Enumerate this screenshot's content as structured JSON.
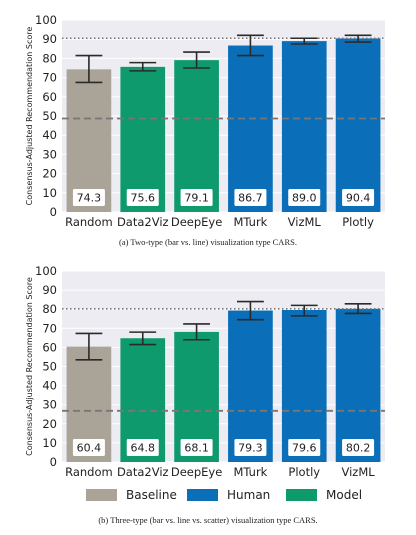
{
  "chart_data": [
    {
      "type": "bar",
      "ylabel": "Consensus-Adjusted Recommendation Score",
      "ylim": [
        0,
        100
      ],
      "yticks": [
        0,
        10,
        20,
        30,
        40,
        50,
        60,
        70,
        80,
        90,
        100
      ],
      "grid": true,
      "categories": [
        "Random",
        "Data2Viz",
        "DeepEye",
        "MTurk",
        "VizML",
        "Plotly"
      ],
      "values": [
        74.3,
        75.6,
        79.1,
        86.7,
        89.0,
        90.4
      ],
      "value_labels": [
        "74.3",
        "75.6",
        "79.1",
        "86.7",
        "89.0",
        "90.4"
      ],
      "error_low": [
        67.5,
        73.5,
        75.0,
        81.5,
        87.5,
        88.5
      ],
      "error_high": [
        81.5,
        77.8,
        83.3,
        92.0,
        90.5,
        92.0
      ],
      "groups": [
        "Baseline",
        "Model",
        "Model",
        "Human",
        "Human",
        "Human"
      ],
      "reference_lines": [
        {
          "style": "dotted",
          "value": 90.5
        },
        {
          "style": "dashed",
          "value": 48.7
        }
      ],
      "caption": "(a) Two-type (bar vs. line) visualization type CARS."
    },
    {
      "type": "bar",
      "ylabel": "Consensus-Adjusted Recommendation Score",
      "ylim": [
        0,
        100
      ],
      "yticks": [
        0,
        10,
        20,
        30,
        40,
        50,
        60,
        70,
        80,
        90,
        100
      ],
      "grid": true,
      "categories": [
        "Random",
        "Data2Viz",
        "DeepEye",
        "MTurk",
        "Plotly",
        "VizML"
      ],
      "values": [
        60.4,
        64.8,
        68.1,
        79.3,
        79.6,
        80.2
      ],
      "value_labels": [
        "60.4",
        "64.8",
        "68.1",
        "79.3",
        "79.6",
        "80.2"
      ],
      "error_low": [
        53.5,
        61.5,
        64.0,
        74.5,
        76.5,
        77.8
      ],
      "error_high": [
        67.3,
        68.0,
        72.3,
        84.0,
        82.0,
        82.8
      ],
      "groups": [
        "Baseline",
        "Model",
        "Model",
        "Human",
        "Human",
        "Human"
      ],
      "reference_lines": [
        {
          "style": "dotted",
          "value": 80.2
        },
        {
          "style": "dashed",
          "value": 26.8
        }
      ],
      "caption": "(b) Three-type (bar vs. line vs. scatter) visualization type CARS."
    }
  ],
  "legend": {
    "placement": "bottom",
    "items": [
      {
        "label": "Baseline",
        "color": "#aaa397"
      },
      {
        "label": "Human",
        "color": "#0a6eb8"
      },
      {
        "label": "Model",
        "color": "#0f9a6e"
      }
    ]
  },
  "colors": {
    "Baseline": "#aaa397",
    "Human": "#0a6eb8",
    "Model": "#0f9a6e",
    "plot_background": "#ececf2",
    "reference_line": "#777777"
  }
}
